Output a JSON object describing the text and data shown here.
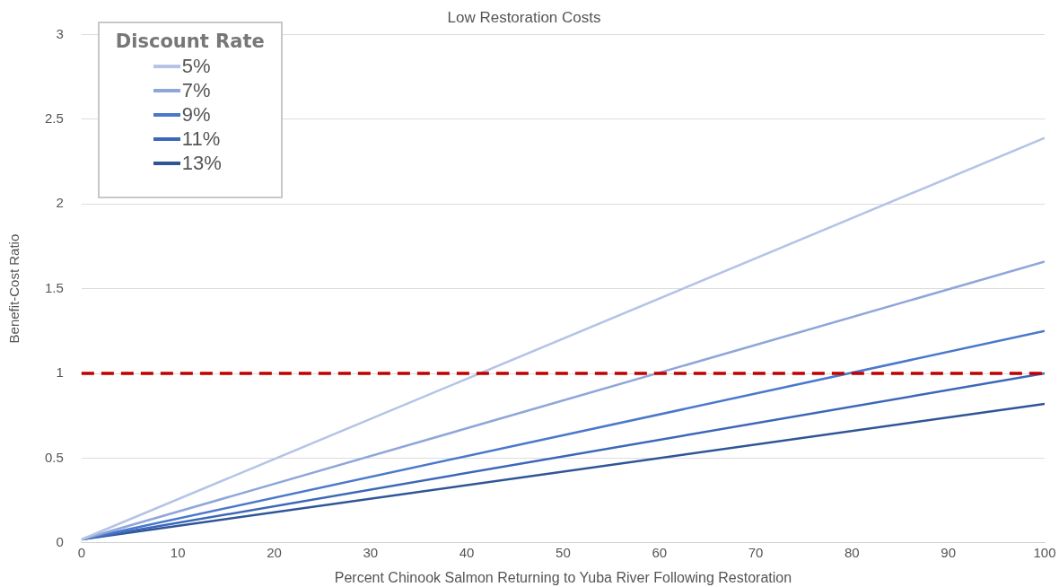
{
  "chart_data": {
    "type": "line",
    "title": "Low Restoration Costs",
    "xlabel": "Percent Chinook Salmon Returning to Yuba River Following Restoration",
    "ylabel": "Benefit-Cost Ratio",
    "legend_title": "Discount Rate",
    "x": [
      0,
      100
    ],
    "series": [
      {
        "name": "5%",
        "color": "#b4c3e6",
        "values": [
          0.02,
          2.39
        ]
      },
      {
        "name": "7%",
        "color": "#8fa6da",
        "values": [
          0.02,
          1.66
        ]
      },
      {
        "name": "9%",
        "color": "#4a78cc",
        "values": [
          0.02,
          1.25
        ]
      },
      {
        "name": "11%",
        "color": "#3c67b8",
        "values": [
          0.02,
          1.0
        ]
      },
      {
        "name": "13%",
        "color": "#2f5597",
        "values": [
          0.02,
          0.82
        ]
      }
    ],
    "xlim": [
      0,
      100
    ],
    "xticks": [
      0,
      10,
      20,
      30,
      40,
      50,
      60,
      70,
      80,
      90,
      100
    ],
    "ylim": [
      0,
      3
    ],
    "yticks": [
      0,
      0.5,
      1,
      1.5,
      2,
      2.5,
      3
    ],
    "ref_lines": [
      {
        "axis": "y",
        "value": 1,
        "color": "#c00000",
        "line_style": "dashed"
      }
    ],
    "grid": "y",
    "legend": "top left",
    "marker": "none",
    "line_style": "solid"
  }
}
